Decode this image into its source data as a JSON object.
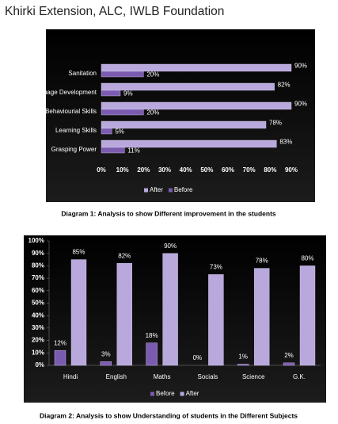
{
  "title": "Khirki Extension, ALC, IWLB Foundation",
  "chart_data": [
    {
      "type": "bar",
      "orientation": "horizontal",
      "caption": "Diagram 1: Analysis to show Different improvement in the students",
      "categories": [
        "Sanitation",
        "Language Development",
        "Behaviourial Skills",
        "Learning Skills",
        "Grasping Power"
      ],
      "series": [
        {
          "name": "After",
          "color": "#b8a8dc",
          "values": [
            90,
            82,
            90,
            78,
            83
          ],
          "value_labels": [
            "90%",
            "82%",
            "90%",
            "78%",
            "83%"
          ]
        },
        {
          "name": "Before",
          "color": "#7b5bb0",
          "values": [
            20,
            9,
            20,
            5,
            11
          ],
          "value_labels": [
            "20%",
            "9%",
            "20%",
            "5%",
            "11%"
          ]
        }
      ],
      "xlim": [
        0,
        90
      ],
      "xticks": [
        {
          "value": 0,
          "label": "0%"
        },
        {
          "value": 10,
          "label": "10%"
        },
        {
          "value": 20,
          "label": "20%"
        },
        {
          "value": 30,
          "label": "30%"
        },
        {
          "value": 40,
          "label": "40%"
        },
        {
          "value": 50,
          "label": "50%"
        },
        {
          "value": 60,
          "label": "60%"
        },
        {
          "value": 70,
          "label": "70%"
        },
        {
          "value": 80,
          "label": "80%"
        },
        {
          "value": 90,
          "label": "90%"
        }
      ],
      "legend": "bottom",
      "grid": false
    },
    {
      "type": "bar",
      "orientation": "vertical",
      "caption": "Diagram 2: Analysis to show Understanding of students in the Different Subjects",
      "categories": [
        "Hindi",
        "English",
        "Maths",
        "Socials",
        "Science",
        "G.K."
      ],
      "series": [
        {
          "name": "Before",
          "color": "#7b5bb0",
          "values": [
            12,
            3,
            18,
            0,
            1,
            2
          ],
          "value_labels": [
            "12%",
            "3%",
            "18%",
            "0%",
            "1%",
            "2%"
          ]
        },
        {
          "name": "After",
          "color": "#b8a8dc",
          "values": [
            85,
            82,
            90,
            73,
            78,
            80
          ],
          "value_labels": [
            "85%",
            "82%",
            "90%",
            "73%",
            "78%",
            "80%"
          ]
        }
      ],
      "ylim": [
        0,
        100
      ],
      "yticks": [
        {
          "value": 0,
          "label": "0%"
        },
        {
          "value": 10,
          "label": "10%"
        },
        {
          "value": 20,
          "label": "20%"
        },
        {
          "value": 30,
          "label": "30%"
        },
        {
          "value": 40,
          "label": "40%"
        },
        {
          "value": 50,
          "label": "50%"
        },
        {
          "value": 60,
          "label": "60%"
        },
        {
          "value": 70,
          "label": "70%"
        },
        {
          "value": 80,
          "label": "80%"
        },
        {
          "value": 90,
          "label": "90%"
        },
        {
          "value": 100,
          "label": "100%"
        }
      ],
      "legend": "bottom",
      "grid": false
    }
  ]
}
